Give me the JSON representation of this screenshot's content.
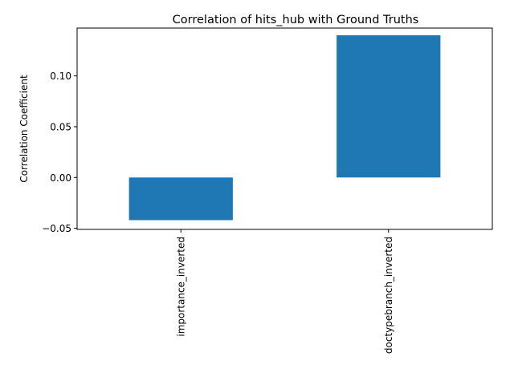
{
  "chart_data": {
    "type": "bar",
    "title": "Correlation of hits_hub with Ground Truths",
    "xlabel": "",
    "ylabel": "Correlation Coefficient",
    "categories": [
      "importance_inverted",
      "doctypebranch_inverted"
    ],
    "values": [
      -0.042,
      0.14
    ],
    "ylim": [
      -0.0511,
      0.1471
    ],
    "yticks": [
      -0.05,
      0.0,
      0.05,
      0.1
    ],
    "ytick_labels": [
      "−0.05",
      "0.00",
      "0.05",
      "0.10"
    ],
    "grid": false,
    "bar_color": "#1f77b4"
  }
}
